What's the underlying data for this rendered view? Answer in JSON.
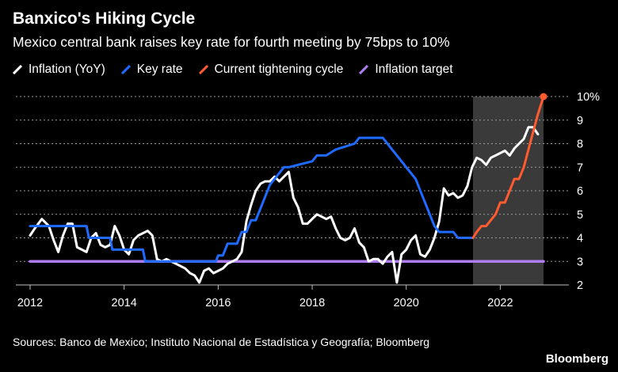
{
  "title": "Banxico's Hiking Cycle",
  "subtitle": "Mexico central bank raises key rate for fourth meeting by 75bps to 10%",
  "legend": [
    {
      "label": "Inflation (YoY)",
      "color": "#ffffff",
      "icon": "slash-mark-icon"
    },
    {
      "label": "Key rate",
      "color": "#1f6bff",
      "icon": "slash-mark-icon"
    },
    {
      "label": "Current tightening cycle",
      "color": "#ff5a30",
      "icon": "slash-mark-icon"
    },
    {
      "label": "Inflation target",
      "color": "#b07cf2",
      "icon": "slash-mark-icon"
    }
  ],
  "source": "Sources: Banco de Mexico; Instituto Nacional de Estadística y Geografía; Bloomberg",
  "brand": "Bloomberg",
  "chart_data": {
    "type": "line",
    "title": "Banxico's Hiking Cycle",
    "xlabel": "",
    "ylabel": "",
    "xlim": [
      2012.0,
      2022.92
    ],
    "ylim": [
      2,
      10
    ],
    "x_ticks": [
      2012,
      2014,
      2016,
      2018,
      2020,
      2022
    ],
    "x_tick_labels": [
      "2012",
      "2014",
      "2016",
      "2018",
      "2020",
      "2022"
    ],
    "y_ticks": [
      2,
      3,
      4,
      5,
      6,
      7,
      8,
      9,
      10
    ],
    "y_tick_labels": [
      "2",
      "3",
      "4",
      "5",
      "6",
      "7",
      "8",
      "9",
      "10%"
    ],
    "shaded_region": {
      "x0": 2021.42,
      "x1": 2022.92,
      "color": "#3a3a3a"
    },
    "series": [
      {
        "name": "Inflation (YoY)",
        "color": "#ffffff",
        "x": [
          2012.0,
          2012.1,
          2012.25,
          2012.4,
          2012.5,
          2012.6,
          2012.7,
          2012.8,
          2012.9,
          2013.0,
          2013.1,
          2013.2,
          2013.3,
          2013.4,
          2013.5,
          2013.6,
          2013.7,
          2013.8,
          2013.9,
          2014.0,
          2014.1,
          2014.2,
          2014.3,
          2014.4,
          2014.5,
          2014.6,
          2014.7,
          2014.8,
          2014.9,
          2015.0,
          2015.1,
          2015.2,
          2015.3,
          2015.4,
          2015.5,
          2015.6,
          2015.7,
          2015.8,
          2015.9,
          2016.0,
          2016.1,
          2016.2,
          2016.3,
          2016.4,
          2016.5,
          2016.6,
          2016.7,
          2016.8,
          2016.9,
          2017.0,
          2017.1,
          2017.2,
          2017.3,
          2017.4,
          2017.5,
          2017.6,
          2017.7,
          2017.8,
          2017.9,
          2018.0,
          2018.1,
          2018.2,
          2018.3,
          2018.4,
          2018.5,
          2018.6,
          2018.7,
          2018.8,
          2018.9,
          2019.0,
          2019.1,
          2019.2,
          2019.3,
          2019.4,
          2019.5,
          2019.6,
          2019.7,
          2019.8,
          2019.9,
          2020.0,
          2020.1,
          2020.2,
          2020.3,
          2020.4,
          2020.5,
          2020.6,
          2020.7,
          2020.8,
          2020.9,
          2021.0,
          2021.1,
          2021.2,
          2021.3,
          2021.4,
          2021.5,
          2021.6,
          2021.7,
          2021.8,
          2021.9,
          2022.0,
          2022.1,
          2022.2,
          2022.3,
          2022.4,
          2022.5,
          2022.6,
          2022.7,
          2022.8,
          2022.92
        ],
        "y": [
          4.1,
          4.4,
          4.8,
          4.5,
          3.9,
          3.4,
          4.1,
          4.6,
          4.6,
          3.6,
          3.5,
          3.4,
          4.0,
          4.2,
          3.7,
          3.6,
          3.7,
          4.5,
          4.1,
          3.5,
          3.3,
          3.9,
          4.1,
          4.2,
          4.3,
          4.1,
          3.1,
          3.0,
          3.1,
          3.0,
          2.9,
          2.8,
          2.7,
          2.5,
          2.4,
          2.1,
          2.6,
          2.7,
          2.5,
          2.6,
          2.7,
          2.9,
          3.0,
          3.1,
          3.4,
          4.7,
          5.4,
          6.0,
          6.3,
          6.4,
          6.4,
          6.6,
          6.4,
          6.6,
          6.8,
          5.7,
          5.3,
          4.6,
          4.6,
          4.8,
          5.0,
          4.9,
          4.8,
          4.9,
          4.4,
          4.0,
          3.9,
          4.0,
          4.4,
          3.8,
          3.6,
          3.0,
          3.1,
          3.1,
          2.9,
          3.2,
          3.4,
          2.1,
          3.3,
          3.5,
          3.9,
          4.1,
          3.3,
          3.2,
          3.5,
          4.0,
          4.7,
          6.1,
          5.8,
          5.9,
          5.7,
          5.8,
          6.2,
          7.0,
          7.4,
          7.3,
          7.1,
          7.4,
          7.5,
          7.6,
          7.7,
          7.5,
          7.8,
          8.0,
          8.2,
          8.7,
          8.7,
          8.4,
          8.2
        ],
        "visible_until": 2022.85
      },
      {
        "name": "Key rate",
        "color": "#1f6bff",
        "x": [
          2012.0,
          2013.2,
          2013.25,
          2013.7,
          2013.75,
          2014.4,
          2014.45,
          2015.95,
          2016.0,
          2016.1,
          2016.2,
          2016.4,
          2016.5,
          2016.6,
          2016.7,
          2016.8,
          2016.9,
          2017.0,
          2017.1,
          2017.2,
          2017.3,
          2017.4,
          2017.5,
          2018.0,
          2018.1,
          2018.3,
          2018.5,
          2018.9,
          2019.0,
          2019.5,
          2019.6,
          2019.7,
          2019.8,
          2019.9,
          2020.0,
          2020.2,
          2020.3,
          2020.4,
          2020.5,
          2020.6,
          2020.7,
          2020.8,
          2021.0,
          2021.1,
          2021.3,
          2021.42
        ],
        "y": [
          4.5,
          4.5,
          4.0,
          4.0,
          3.5,
          3.5,
          3.0,
          3.0,
          3.25,
          3.25,
          3.75,
          3.75,
          4.25,
          4.25,
          4.75,
          4.75,
          5.25,
          5.75,
          6.25,
          6.5,
          6.75,
          7.0,
          7.0,
          7.25,
          7.5,
          7.5,
          7.75,
          8.0,
          8.25,
          8.25,
          8.0,
          7.75,
          7.5,
          7.25,
          7.0,
          6.5,
          6.0,
          5.5,
          5.0,
          4.5,
          4.25,
          4.25,
          4.25,
          4.0,
          4.0,
          4.0
        ]
      },
      {
        "name": "Current tightening cycle",
        "color": "#ff5a30",
        "x": [
          2021.42,
          2021.5,
          2021.6,
          2021.7,
          2021.8,
          2021.9,
          2022.0,
          2022.1,
          2022.2,
          2022.3,
          2022.4,
          2022.5,
          2022.6,
          2022.7,
          2022.8,
          2022.92
        ],
        "y": [
          4.0,
          4.25,
          4.5,
          4.5,
          4.75,
          5.0,
          5.5,
          5.5,
          6.0,
          6.5,
          6.5,
          7.0,
          7.75,
          8.5,
          9.25,
          10.0
        ]
      },
      {
        "name": "Inflation target",
        "color": "#b07cf2",
        "x": [
          2012.0,
          2022.92
        ],
        "y": [
          3.0,
          3.0
        ]
      }
    ]
  }
}
